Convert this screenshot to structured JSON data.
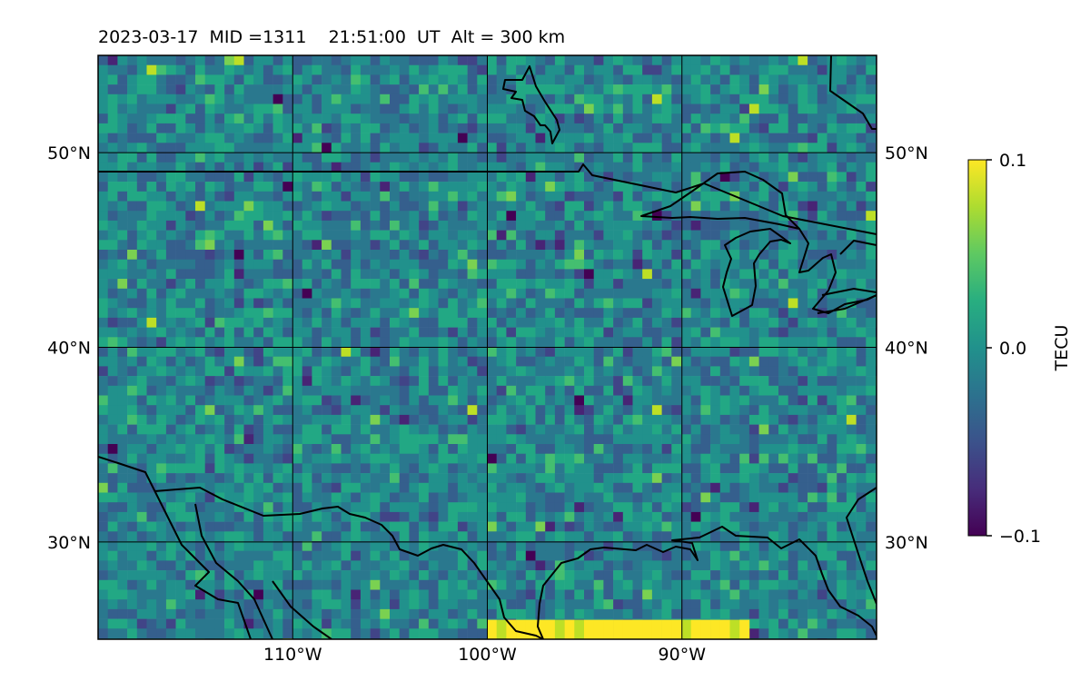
{
  "title": "2023-03-17  MID =1311    21:51:00  UT  Alt = 300 km",
  "map": {
    "lon_range": [
      -120,
      -80
    ],
    "lat_range": [
      25,
      55
    ],
    "lat_ticks": [
      {
        "value": 30,
        "label": "30°N"
      },
      {
        "value": 40,
        "label": "40°N"
      },
      {
        "value": 50,
        "label": "50°N"
      }
    ],
    "lon_ticks": [
      {
        "value": -110,
        "label": "110°W"
      },
      {
        "value": -100,
        "label": "100°W"
      },
      {
        "value": -90,
        "label": "90°W"
      }
    ],
    "grid": true,
    "colormap": "viridis"
  },
  "colorbar": {
    "label": "TECU",
    "ticks": [
      {
        "value": 0.1,
        "label": "0.1"
      },
      {
        "value": 0.0,
        "label": "0.0"
      },
      {
        "value": -0.1,
        "label": "−0.1"
      }
    ],
    "range": [
      -0.1,
      0.1
    ]
  }
}
